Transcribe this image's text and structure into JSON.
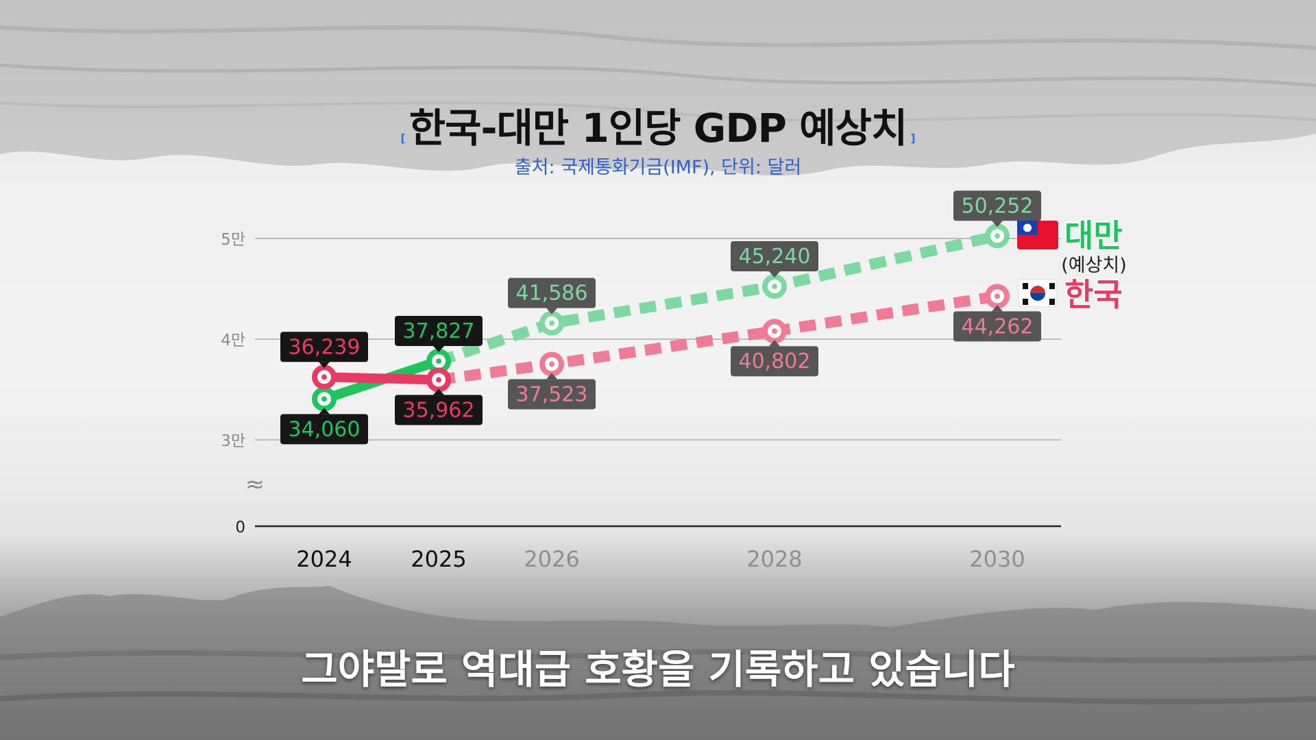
{
  "title": "한국-대만 1인당 GDP 예상치",
  "bracket_open": "[",
  "bracket_close": "]",
  "subtitle": "출처: 국제통화기금(IMF), 단위: 달러",
  "caption": "그야말로 역대급 호황을 기록하고 있습니다",
  "colors": {
    "taiwan": "#1ec45c",
    "taiwan_forecast": "#7dd9a0",
    "korea": "#e83a63",
    "korea_forecast": "#ef7b96",
    "title_bracket": "#2f6bff",
    "subtitle": "#2f5fd0"
  },
  "legend": {
    "taiwan_label": "대만",
    "taiwan_note": "(예상치)",
    "korea_label": "한국",
    "taiwan_flag": "taiwan-flag-icon",
    "korea_flag": "korea-flag-icon"
  },
  "chart_data": {
    "type": "line",
    "x": [
      2024,
      2025,
      2026,
      2028,
      2030
    ],
    "x_tick_labels": [
      "2024",
      "2025",
      "2026",
      "2028",
      "2030"
    ],
    "y_ticks": [
      {
        "value": 0,
        "label": "0"
      },
      {
        "value": 30000,
        "label": "3만"
      },
      {
        "value": 40000,
        "label": "4만"
      },
      {
        "value": 50000,
        "label": "5만"
      }
    ],
    "ylim": [
      0,
      52000
    ],
    "axis_break": "≈",
    "grid": true,
    "forecast_from_x": 2025,
    "series": [
      {
        "name": "대만",
        "values": [
          34060,
          37827,
          41586,
          45240,
          50252
        ],
        "labels": [
          "34,060",
          "37,827",
          "41,586",
          "45,240",
          "50,252"
        ],
        "label_pos": [
          "below",
          "above",
          "above",
          "above",
          "above"
        ]
      },
      {
        "name": "한국",
        "values": [
          36239,
          35962,
          37523,
          40802,
          44262
        ],
        "labels": [
          "36,239",
          "35,962",
          "37,523",
          "40,802",
          "44,262"
        ],
        "label_pos": [
          "above",
          "below",
          "below",
          "below",
          "below"
        ]
      }
    ]
  }
}
